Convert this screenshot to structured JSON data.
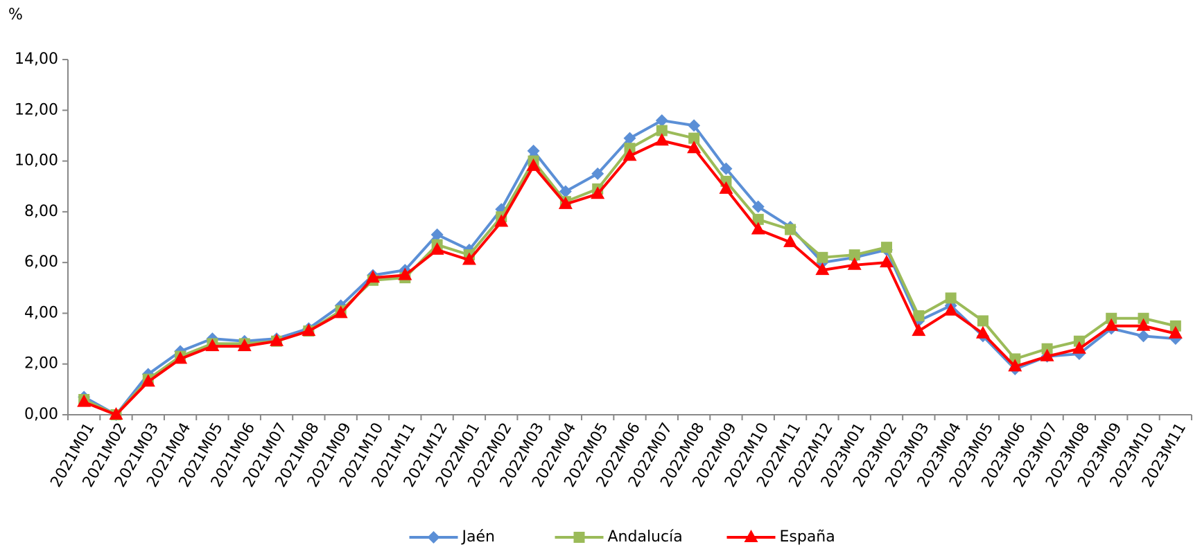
{
  "chart_data": {
    "type": "line",
    "y_unit": "%",
    "categories": [
      "2021M01",
      "2021M02",
      "2021M03",
      "2021M04",
      "2021M05",
      "2021M06",
      "2021M07",
      "2021M08",
      "2021M09",
      "2021M10",
      "2021M11",
      "2021M12",
      "2022M01",
      "2022M02",
      "2022M03",
      "2022M04",
      "2022M05",
      "2022M06",
      "2022M07",
      "2022M08",
      "2022M09",
      "2022M10",
      "2022M11",
      "2022M12",
      "2023M01",
      "2023M02",
      "2023M03",
      "2023M04",
      "2023M05",
      "2023M06",
      "2023M07",
      "2023M08",
      "2023M09",
      "2023M10",
      "2023M11"
    ],
    "series": [
      {
        "name": "Jaén",
        "color": "#5b8fd6",
        "marker": "diamond",
        "values": [
          0.7,
          0.0,
          1.6,
          2.5,
          3.0,
          2.9,
          3.0,
          3.4,
          4.3,
          5.5,
          5.7,
          7.1,
          6.5,
          8.1,
          10.4,
          8.8,
          9.5,
          10.9,
          11.6,
          11.4,
          9.7,
          8.2,
          7.4,
          6.0,
          6.2,
          6.5,
          3.7,
          4.3,
          3.1,
          1.8,
          2.3,
          2.4,
          3.4,
          3.1,
          3.0
        ]
      },
      {
        "name": "Andalucía",
        "color": "#9bbb59",
        "marker": "square",
        "values": [
          0.6,
          0.0,
          1.4,
          2.3,
          2.8,
          2.8,
          2.9,
          3.3,
          4.1,
          5.3,
          5.4,
          6.7,
          6.3,
          7.8,
          10.0,
          8.4,
          8.9,
          10.5,
          11.2,
          10.9,
          9.2,
          7.7,
          7.3,
          6.2,
          6.3,
          6.6,
          3.9,
          4.6,
          3.7,
          2.2,
          2.6,
          2.9,
          3.8,
          3.8,
          3.5
        ]
      },
      {
        "name": "España",
        "color": "#ff0000",
        "marker": "triangle",
        "values": [
          0.5,
          0.0,
          1.3,
          2.2,
          2.7,
          2.7,
          2.9,
          3.3,
          4.0,
          5.4,
          5.5,
          6.5,
          6.1,
          7.6,
          9.8,
          8.3,
          8.7,
          10.2,
          10.8,
          10.5,
          8.9,
          7.3,
          6.8,
          5.7,
          5.9,
          6.0,
          3.3,
          4.1,
          3.2,
          1.9,
          2.3,
          2.6,
          3.5,
          3.5,
          3.2
        ]
      }
    ],
    "ylim": [
      0,
      14
    ],
    "yticks": [
      {
        "value": 0,
        "label": "0,00"
      },
      {
        "value": 2,
        "label": "2,00"
      },
      {
        "value": 4,
        "label": "4,00"
      },
      {
        "value": 6,
        "label": "6,00"
      },
      {
        "value": 8,
        "label": "8,00"
      },
      {
        "value": 10,
        "label": "10,00"
      },
      {
        "value": 12,
        "label": "12,00"
      },
      {
        "value": 14,
        "label": "14,00"
      }
    ],
    "grid": false,
    "legend": "bottom"
  }
}
